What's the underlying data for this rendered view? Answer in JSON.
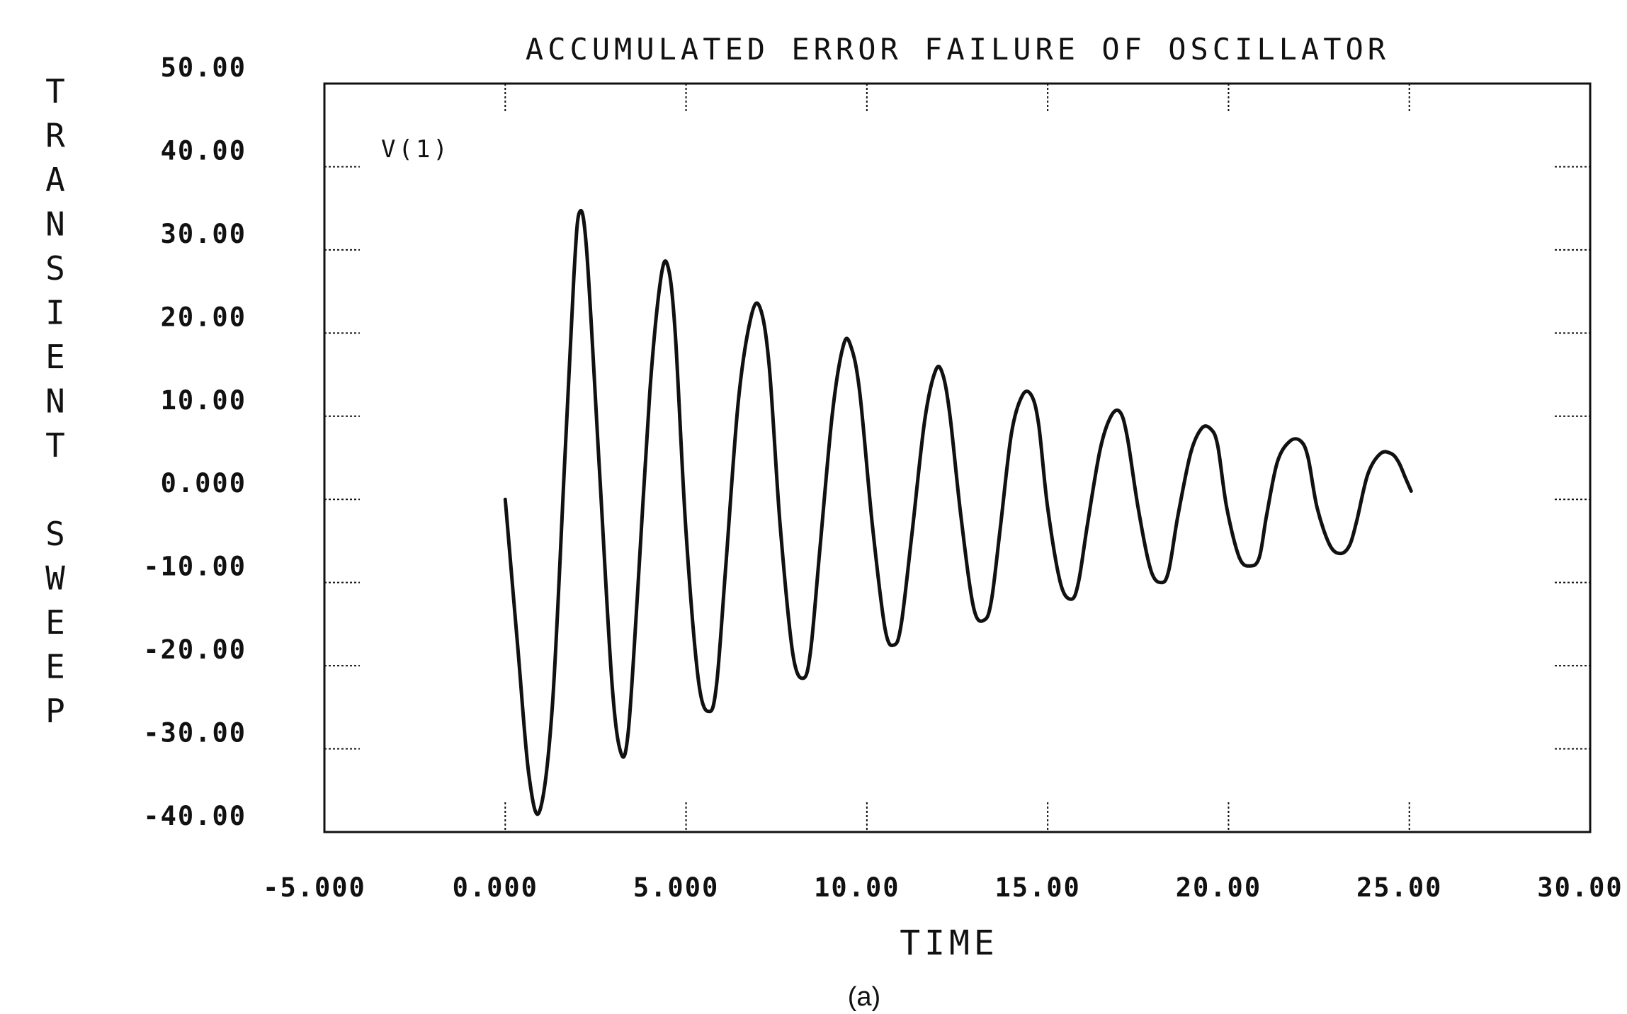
{
  "chart_data": {
    "type": "line",
    "title": "ACCUMULATED ERROR FAILURE OF OSCILLATOR",
    "xlabel": "TIME",
    "ylabel": "TRANSIENT SWEEP",
    "caption": "(a)",
    "xlim": [
      -5,
      30
    ],
    "ylim": [
      -40,
      50
    ],
    "xticks": [
      -5,
      0,
      5,
      10,
      15,
      20,
      25,
      30
    ],
    "yticks": [
      -40,
      -30,
      -20,
      -10,
      0,
      10,
      20,
      30,
      40,
      50
    ],
    "xtick_labels": [
      "-5.000",
      "0.000",
      "5.000",
      "10.00",
      "15.00",
      "20.00",
      "25.00",
      "30.00"
    ],
    "ytick_labels": [
      "-40.00",
      "-30.00",
      "-20.00",
      "-10.00",
      "0.000",
      "10.00",
      "20.00",
      "30.00",
      "40.00",
      "50.00"
    ],
    "grid": false,
    "series": [
      {
        "name": "V(1)",
        "color": "#111111",
        "x": [
          0.0,
          0.35,
          0.65,
          0.95,
          1.3,
          1.65,
          1.9,
          2.05,
          2.25,
          2.6,
          2.95,
          3.2,
          3.4,
          3.65,
          4.0,
          4.3,
          4.5,
          4.7,
          5.0,
          5.35,
          5.65,
          5.85,
          6.1,
          6.45,
          6.8,
          7.05,
          7.3,
          7.6,
          7.95,
          8.25,
          8.45,
          8.7,
          9.05,
          9.35,
          9.55,
          9.8,
          10.15,
          10.5,
          10.75,
          10.95,
          11.25,
          11.6,
          11.9,
          12.1,
          12.3,
          12.6,
          12.95,
          13.25,
          13.45,
          13.7,
          14.0,
          14.3,
          14.55,
          14.75,
          15.0,
          15.35,
          15.65,
          15.85,
          16.1,
          16.45,
          16.75,
          17.0,
          17.2,
          17.5,
          17.85,
          18.15,
          18.35,
          18.6,
          18.95,
          19.25,
          19.5,
          19.7,
          19.95,
          20.3,
          20.6,
          20.85,
          21.05,
          21.35,
          21.7,
          22.0,
          22.2,
          22.45,
          22.8,
          23.1,
          23.35,
          23.55,
          23.85,
          24.2,
          24.5,
          24.7,
          24.9,
          25.05
        ],
        "values": [
          0.0,
          -18.0,
          -33.0,
          -37.5,
          -25.0,
          5.0,
          27.0,
          34.5,
          30.0,
          4.0,
          -22.0,
          -30.5,
          -28.0,
          -12.0,
          13.0,
          26.5,
          28.0,
          20.0,
          -4.0,
          -22.0,
          -25.5,
          -22.0,
          -8.0,
          12.0,
          22.0,
          23.0,
          16.0,
          -3.0,
          -18.5,
          -21.5,
          -18.0,
          -6.0,
          10.5,
          18.5,
          18.5,
          13.0,
          -3.0,
          -15.5,
          -17.5,
          -15.0,
          -4.0,
          9.5,
          15.5,
          15.0,
          10.0,
          -2.0,
          -13.0,
          -14.5,
          -12.0,
          -3.0,
          8.0,
          12.5,
          12.5,
          9.0,
          -1.0,
          -10.0,
          -12.0,
          -10.0,
          -3.0,
          6.0,
          10.0,
          10.5,
          7.5,
          -1.0,
          -8.5,
          -10.0,
          -8.5,
          -2.0,
          5.5,
          8.5,
          8.5,
          6.5,
          -1.0,
          -7.0,
          -8.0,
          -7.0,
          -2.0,
          4.5,
          7.0,
          7.0,
          5.0,
          -1.0,
          -5.5,
          -6.5,
          -5.5,
          -2.5,
          3.0,
          5.5,
          5.5,
          4.5,
          2.5,
          1.0
        ]
      }
    ]
  }
}
